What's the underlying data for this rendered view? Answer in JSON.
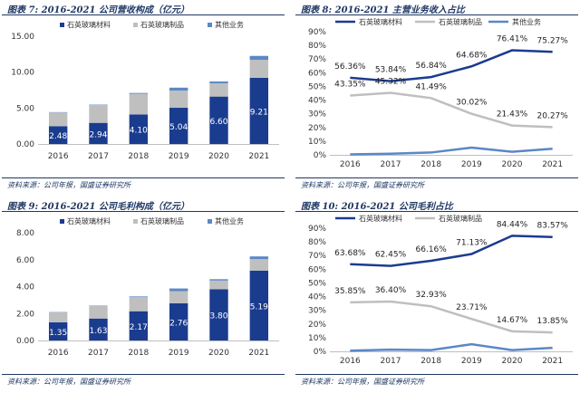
{
  "chart_data": [
    {
      "type": "bar",
      "title": "图表 7:  2016-2021 公司营收构成（亿元）",
      "source": "资料来源：公司年报，国盛证券研究所",
      "stacked": true,
      "categories": [
        "2016",
        "2017",
        "2018",
        "2019",
        "2020",
        "2021"
      ],
      "ylim": [
        0,
        15
      ],
      "yticks": [
        "0.00",
        "5.00",
        "10.00",
        "15.00"
      ],
      "series": [
        {
          "name": "石英玻璃材料",
          "color": "#1a3c8f",
          "values": [
            2.48,
            2.94,
            4.1,
            5.04,
            6.6,
            9.21
          ],
          "labels": [
            "2.48",
            "2.94",
            "4.10",
            "5.04",
            "6.60",
            "9.21"
          ]
        },
        {
          "name": "石英玻璃制品",
          "color": "#bfbfbf",
          "values": [
            1.9,
            2.5,
            2.9,
            2.4,
            1.85,
            2.5
          ]
        },
        {
          "name": "其他业务",
          "color": "#5b87c6",
          "values": [
            0.05,
            0.05,
            0.1,
            0.4,
            0.25,
            0.55
          ]
        }
      ]
    },
    {
      "type": "line",
      "title": "图表 8:  2016-2021 主营业务收入占比",
      "source": "资料来源：公司年报，国盛证券研究所",
      "categories": [
        "2016",
        "2017",
        "2018",
        "2019",
        "2020",
        "2021"
      ],
      "ylim": [
        0,
        90
      ],
      "yticks": [
        "0%",
        "10%",
        "20%",
        "30%",
        "40%",
        "50%",
        "60%",
        "70%",
        "80%",
        "90%"
      ],
      "series": [
        {
          "name": "石英玻璃材料",
          "color": "#1a3c8f",
          "values": [
            56.36,
            53.84,
            56.84,
            64.68,
            76.41,
            75.27
          ],
          "labels": [
            "56.36%",
            "53.84%",
            "56.84%",
            "64.68%",
            "76.41%",
            "75.27%"
          ]
        },
        {
          "name": "石英玻璃制品",
          "color": "#bfbfbf",
          "values": [
            43.35,
            45.32,
            41.49,
            30.02,
            21.43,
            20.27
          ],
          "labels": [
            "43.35%",
            "45.32%",
            "41.49%",
            "30.02%",
            "21.43%",
            "20.27%"
          ]
        },
        {
          "name": "其他业务",
          "color": "#5b87c6",
          "values": [
            0.3,
            0.8,
            1.7,
            5.3,
            2.2,
            4.5
          ]
        }
      ]
    },
    {
      "type": "bar",
      "title": "图表 9:  2016-2021 公司毛利构成（亿元）",
      "source": "资料来源：公司年报，国盛证券研究所",
      "stacked": true,
      "categories": [
        "2016",
        "2017",
        "2018",
        "2019",
        "2020",
        "2021"
      ],
      "ylim": [
        0,
        8
      ],
      "yticks": [
        "0.00",
        "2.00",
        "4.00",
        "6.00",
        "8.00"
      ],
      "series": [
        {
          "name": "石英玻璃材料",
          "color": "#1a3c8f",
          "values": [
            1.35,
            1.63,
            2.17,
            2.76,
            3.8,
            5.19
          ],
          "labels": [
            "1.35",
            "1.63",
            "2.17",
            "2.76",
            "3.80",
            "5.19"
          ]
        },
        {
          "name": "石英玻璃制品",
          "color": "#bfbfbf",
          "values": [
            0.75,
            0.95,
            1.05,
            0.9,
            0.65,
            0.85
          ]
        },
        {
          "name": "其他业务",
          "color": "#5b87c6",
          "values": [
            0.02,
            0.02,
            0.05,
            0.2,
            0.1,
            0.2
          ]
        }
      ]
    },
    {
      "type": "line",
      "title": "图表 10:  2016-2021 公司毛利占比",
      "source": "资料来源：公司年报，国盛证券研究所",
      "categories": [
        "2016",
        "2017",
        "2018",
        "2019",
        "2020",
        "2021"
      ],
      "ylim": [
        0,
        90
      ],
      "yticks": [
        "0%",
        "10%",
        "20%",
        "30%",
        "40%",
        "50%",
        "60%",
        "70%",
        "80%",
        "90%"
      ],
      "series": [
        {
          "name": "石英玻璃材料",
          "color": "#1a3c8f",
          "values": [
            63.68,
            62.45,
            66.16,
            71.13,
            84.44,
            83.57
          ],
          "labels": [
            "63.68%",
            "62.45%",
            "66.16%",
            "71.13%",
            "84.44%",
            "83.57%"
          ]
        },
        {
          "name": "石英玻璃制品",
          "color": "#bfbfbf",
          "values": [
            35.85,
            36.4,
            32.93,
            23.71,
            14.67,
            13.85
          ],
          "labels": [
            "35.85%",
            "36.40%",
            "32.93%",
            "23.71%",
            "14.67%",
            "13.85%"
          ]
        },
        {
          "name": "",
          "color": "#5b87c6",
          "values": [
            0.5,
            1.2,
            0.9,
            5.2,
            0.9,
            2.6
          ]
        }
      ]
    }
  ]
}
